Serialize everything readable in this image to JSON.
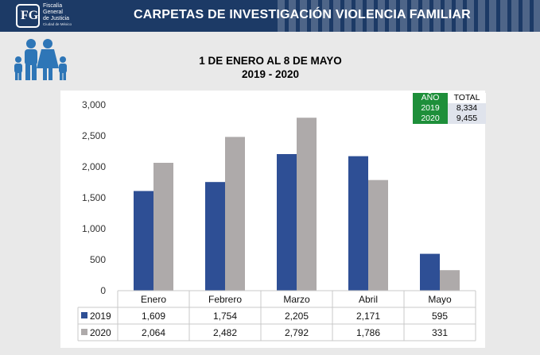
{
  "header": {
    "logo_mark": "FG",
    "logo_line1": "Fiscalía",
    "logo_line2": "General",
    "logo_line3": "de Justicia",
    "logo_line4": "Ciudad de México",
    "title": "CARPETAS DE INVESTIGACIÓN VIOLENCIA FAMILIAR"
  },
  "subtitle": {
    "line1": "1 DE ENERO AL 8 DE MAYO",
    "line2": "2019 - 2020"
  },
  "summary_table": {
    "header_year": "AÑO",
    "header_total": "TOTAL",
    "rows": [
      {
        "year": "2019",
        "total": "8,334"
      },
      {
        "year": "2020",
        "total": "9,455"
      }
    ]
  },
  "chart_data": {
    "type": "bar",
    "categories": [
      "Enero",
      "Febrero",
      "Marzo",
      "Abril",
      "Mayo"
    ],
    "series": [
      {
        "name": "2019",
        "values": [
          1609,
          1754,
          2205,
          2171,
          595
        ],
        "labels": [
          "1,609",
          "1,754",
          "2,205",
          "2,171",
          "595"
        ],
        "color": "#2e4f95"
      },
      {
        "name": "2020",
        "values": [
          2064,
          2482,
          2792,
          1786,
          331
        ],
        "labels": [
          "2,064",
          "2,482",
          "2,792",
          "1,786",
          "331"
        ],
        "color": "#aeaaaa"
      }
    ],
    "ylim": [
      0,
      3000
    ],
    "yticks": [
      0,
      500,
      1000,
      1500,
      2000,
      2500,
      3000
    ],
    "ytick_labels": [
      "0",
      "500",
      "1,000",
      "1,500",
      "2,000",
      "2,500",
      "3,000"
    ],
    "grid": false,
    "legend": "data-table"
  }
}
